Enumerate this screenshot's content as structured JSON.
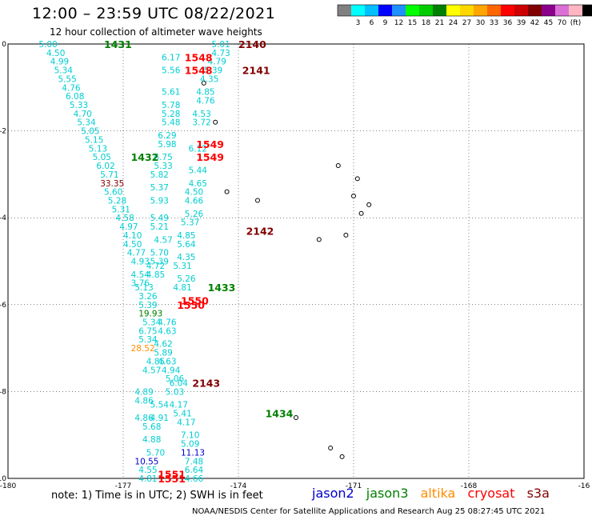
{
  "header": {
    "title": "12:00 – 23:59 UTC 08/22/2021",
    "subtitle": "12 hour collection of altimeter wave heights"
  },
  "colorbar": {
    "colors": [
      "#808080",
      "#00ffff",
      "#00bfff",
      "#0000ff",
      "#1e90ff",
      "#00ff00",
      "#00cc00",
      "#008000",
      "#ffff00",
      "#ffd700",
      "#ffa500",
      "#ff6600",
      "#ff0000",
      "#cc0000",
      "#800000",
      "#8b008b",
      "#da70d6",
      "#ffb6c1",
      "#000000"
    ],
    "ticks": [
      "3",
      "6",
      "9",
      "12",
      "15",
      "18",
      "21",
      "24",
      "27",
      "30",
      "33",
      "36",
      "39",
      "42",
      "45",
      "70",
      "(ft)"
    ]
  },
  "axes": {
    "x_ticks": [
      "-180",
      "-177",
      "-174",
      "-171",
      "-168",
      "-16"
    ],
    "y_ticks": [
      "0",
      "-2",
      "-4",
      "-6",
      "-8",
      "-10"
    ]
  },
  "colors": {
    "jason2": "#0000cd",
    "jason3": "#008000",
    "altika": "#ff8c00",
    "cryosat": "#ff0000",
    "s3a": "#800000",
    "swh": "#00ced1"
  },
  "footer": {
    "note": "note:  1) Time is in UTC;  2) SWH is in feet",
    "credit": "NOAA/NESDIS Center for Satellite Applications and Research     Aug 25 08:27:45 UTC 2021"
  },
  "legend": {
    "jason2": "jason2",
    "jason3": "jason3",
    "altika": "altika",
    "cryosat": "cryosat",
    "s3a": "s3a"
  },
  "track_labels": [
    {
      "text": "1431",
      "lon": -177.5,
      "lat": 0.0,
      "sat": "jason3"
    },
    {
      "text": "1432",
      "lon": -176.8,
      "lat": -2.6,
      "sat": "jason3"
    },
    {
      "text": "1433",
      "lon": -174.8,
      "lat": -5.6,
      "sat": "jason3"
    },
    {
      "text": "1434",
      "lon": -173.3,
      "lat": -8.5,
      "sat": "jason3"
    },
    {
      "text": "1548",
      "lon": -175.4,
      "lat": -0.3,
      "sat": "cryosat"
    },
    {
      "text": "1548",
      "lon": -175.4,
      "lat": -0.6,
      "sat": "cryosat"
    },
    {
      "text": "1549",
      "lon": -175.1,
      "lat": -2.3,
      "sat": "cryosat"
    },
    {
      "text": "1549",
      "lon": -175.1,
      "lat": -2.6,
      "sat": "cryosat"
    },
    {
      "text": "1550",
      "lon": -175.5,
      "lat": -5.9,
      "sat": "cryosat"
    },
    {
      "text": "1550",
      "lon": -175.6,
      "lat": -6.0,
      "sat": "cryosat"
    },
    {
      "text": "1551",
      "lon": -176.1,
      "lat": -9.9,
      "sat": "cryosat"
    },
    {
      "text": "1551",
      "lon": -176.1,
      "lat": -10.0,
      "sat": "cryosat"
    },
    {
      "text": "2140",
      "lon": -174.0,
      "lat": 0.0,
      "sat": "s3a"
    },
    {
      "text": "2141",
      "lon": -173.9,
      "lat": -0.6,
      "sat": "s3a"
    },
    {
      "text": "2142",
      "lon": -173.8,
      "lat": -4.3,
      "sat": "s3a"
    },
    {
      "text": "2143",
      "lon": -175.2,
      "lat": -7.8,
      "sat": "s3a"
    }
  ],
  "swh_values": [
    {
      "v": "5.00",
      "lon": -179.2,
      "lat": 0.0,
      "c": "swh"
    },
    {
      "v": "4.50",
      "lon": -179.0,
      "lat": -0.2,
      "c": "swh"
    },
    {
      "v": "4.99",
      "lon": -178.9,
      "lat": -0.4,
      "c": "swh"
    },
    {
      "v": "5.34",
      "lon": -178.8,
      "lat": -0.6,
      "c": "swh"
    },
    {
      "v": "5.55",
      "lon": -178.7,
      "lat": -0.8,
      "c": "swh"
    },
    {
      "v": "4.76",
      "lon": -178.6,
      "lat": -1.0,
      "c": "swh"
    },
    {
      "v": "6.08",
      "lon": -178.5,
      "lat": -1.2,
      "c": "swh"
    },
    {
      "v": "5.33",
      "lon": -178.4,
      "lat": -1.4,
      "c": "swh"
    },
    {
      "v": "4.70",
      "lon": -178.3,
      "lat": -1.6,
      "c": "swh"
    },
    {
      "v": "5.34",
      "lon": -178.2,
      "lat": -1.8,
      "c": "swh"
    },
    {
      "v": "5.05",
      "lon": -178.1,
      "lat": -2.0,
      "c": "swh"
    },
    {
      "v": "5.15",
      "lon": -178.0,
      "lat": -2.2,
      "c": "swh"
    },
    {
      "v": "5.13",
      "lon": -177.9,
      "lat": -2.4,
      "c": "swh"
    },
    {
      "v": "5.05",
      "lon": -177.8,
      "lat": -2.6,
      "c": "swh"
    },
    {
      "v": "6.02",
      "lon": -177.7,
      "lat": -2.8,
      "c": "swh"
    },
    {
      "v": "5.71",
      "lon": -177.6,
      "lat": -3.0,
      "c": "swh"
    },
    {
      "v": "33.35",
      "lon": -177.6,
      "lat": -3.2,
      "c": "s3a"
    },
    {
      "v": "5.60",
      "lon": -177.5,
      "lat": -3.4,
      "c": "swh"
    },
    {
      "v": "5.28",
      "lon": -177.4,
      "lat": -3.6,
      "c": "swh"
    },
    {
      "v": "5.31",
      "lon": -177.3,
      "lat": -3.8,
      "c": "swh"
    },
    {
      "v": "4.58",
      "lon": -177.2,
      "lat": -4.0,
      "c": "swh"
    },
    {
      "v": "4.97",
      "lon": -177.1,
      "lat": -4.2,
      "c": "swh"
    },
    {
      "v": "4.10",
      "lon": -177.0,
      "lat": -4.4,
      "c": "swh"
    },
    {
      "v": "4.50",
      "lon": -177.0,
      "lat": -4.6,
      "c": "swh"
    },
    {
      "v": "4.77",
      "lon": -176.9,
      "lat": -4.8,
      "c": "swh"
    },
    {
      "v": "4.93",
      "lon": -176.8,
      "lat": -5.0,
      "c": "swh"
    },
    {
      "v": "4.54",
      "lon": -176.8,
      "lat": -5.3,
      "c": "swh"
    },
    {
      "v": "3.76",
      "lon": -176.8,
      "lat": -5.5,
      "c": "swh"
    },
    {
      "v": "5.13",
      "lon": -176.7,
      "lat": -5.6,
      "c": "swh"
    },
    {
      "v": "3.26",
      "lon": -176.6,
      "lat": -5.8,
      "c": "swh"
    },
    {
      "v": "5.39",
      "lon": -176.6,
      "lat": -6.0,
      "c": "swh"
    },
    {
      "v": "19.93",
      "lon": -176.6,
      "lat": -6.2,
      "c": "jason3"
    },
    {
      "v": "5.34",
      "lon": -176.5,
      "lat": -6.4,
      "c": "swh"
    },
    {
      "v": "6.75",
      "lon": -176.6,
      "lat": -6.6,
      "c": "swh"
    },
    {
      "v": "5.34",
      "lon": -176.6,
      "lat": -6.8,
      "c": "swh"
    },
    {
      "v": "28.52",
      "lon": -176.8,
      "lat": -7.0,
      "c": "altika"
    },
    {
      "v": "4.85",
      "lon": -176.4,
      "lat": -7.3,
      "c": "swh"
    },
    {
      "v": "4.57",
      "lon": -176.5,
      "lat": -7.5,
      "c": "swh"
    },
    {
      "v": "6.04",
      "lon": -175.8,
      "lat": -7.8,
      "c": "swh"
    },
    {
      "v": "4.89",
      "lon": -176.7,
      "lat": -8.0,
      "c": "swh"
    },
    {
      "v": "4.86",
      "lon": -176.7,
      "lat": -8.2,
      "c": "swh"
    },
    {
      "v": "5.54",
      "lon": -176.3,
      "lat": -8.3,
      "c": "swh"
    },
    {
      "v": "4.91",
      "lon": -176.3,
      "lat": -8.6,
      "c": "swh"
    },
    {
      "v": "4.86",
      "lon": -176.7,
      "lat": -8.6,
      "c": "swh"
    },
    {
      "v": "5.68",
      "lon": -176.5,
      "lat": -8.8,
      "c": "swh"
    },
    {
      "v": "4.88",
      "lon": -176.5,
      "lat": -9.1,
      "c": "swh"
    },
    {
      "v": "5.70",
      "lon": -176.4,
      "lat": -9.4,
      "c": "swh"
    },
    {
      "v": "10.55",
      "lon": -176.7,
      "lat": -9.6,
      "c": "jason2"
    },
    {
      "v": "4.55",
      "lon": -176.6,
      "lat": -9.8,
      "c": "swh"
    },
    {
      "v": "4.81",
      "lon": -176.6,
      "lat": -10.0,
      "c": "swh"
    },
    {
      "v": "6.17",
      "lon": -176.0,
      "lat": -0.3,
      "c": "swh"
    },
    {
      "v": "5.56",
      "lon": -176.0,
      "lat": -0.6,
      "c": "swh"
    },
    {
      "v": "5.61",
      "lon": -176.0,
      "lat": -1.1,
      "c": "swh"
    },
    {
      "v": "5.78",
      "lon": -176.0,
      "lat": -1.4,
      "c": "swh"
    },
    {
      "v": "5.28",
      "lon": -176.0,
      "lat": -1.6,
      "c": "swh"
    },
    {
      "v": "5.48",
      "lon": -176.0,
      "lat": -1.8,
      "c": "swh"
    },
    {
      "v": "6.29",
      "lon": -176.1,
      "lat": -2.1,
      "c": "swh"
    },
    {
      "v": "5.98",
      "lon": -176.1,
      "lat": -2.3,
      "c": "swh"
    },
    {
      "v": "6.75",
      "lon": -176.2,
      "lat": -2.6,
      "c": "swh"
    },
    {
      "v": "5.33",
      "lon": -176.2,
      "lat": -2.8,
      "c": "swh"
    },
    {
      "v": "5.82",
      "lon": -176.3,
      "lat": -3.0,
      "c": "swh"
    },
    {
      "v": "5.37",
      "lon": -176.3,
      "lat": -3.3,
      "c": "swh"
    },
    {
      "v": "5.93",
      "lon": -176.3,
      "lat": -3.6,
      "c": "swh"
    },
    {
      "v": "5.49",
      "lon": -176.3,
      "lat": -4.0,
      "c": "swh"
    },
    {
      "v": "5.21",
      "lon": -176.3,
      "lat": -4.2,
      "c": "swh"
    },
    {
      "v": "4.57",
      "lon": -176.2,
      "lat": -4.5,
      "c": "swh"
    },
    {
      "v": "5.70",
      "lon": -176.3,
      "lat": -4.8,
      "c": "swh"
    },
    {
      "v": "5.39",
      "lon": -176.3,
      "lat": -5.0,
      "c": "swh"
    },
    {
      "v": "4.72",
      "lon": -176.4,
      "lat": -5.1,
      "c": "swh"
    },
    {
      "v": "4.85",
      "lon": -176.4,
      "lat": -5.3,
      "c": "swh"
    },
    {
      "v": "5.01",
      "lon": -174.7,
      "lat": 0.0,
      "c": "swh"
    },
    {
      "v": "4.73",
      "lon": -174.7,
      "lat": -0.2,
      "c": "swh"
    },
    {
      "v": "4.79",
      "lon": -174.8,
      "lat": -0.4,
      "c": "swh"
    },
    {
      "v": "5.39",
      "lon": -174.9,
      "lat": -0.6,
      "c": "swh"
    },
    {
      "v": "4.35",
      "lon": -175.0,
      "lat": -0.8,
      "c": "swh"
    },
    {
      "v": "4.85",
      "lon": -175.1,
      "lat": -1.1,
      "c": "swh"
    },
    {
      "v": "4.76",
      "lon": -175.1,
      "lat": -1.3,
      "c": "swh"
    },
    {
      "v": "4.53",
      "lon": -175.2,
      "lat": -1.6,
      "c": "swh"
    },
    {
      "v": "3.72",
      "lon": -175.2,
      "lat": -1.8,
      "c": "swh"
    },
    {
      "v": "6.12",
      "lon": -175.3,
      "lat": -2.4,
      "c": "swh"
    },
    {
      "v": "5.44",
      "lon": -175.3,
      "lat": -2.9,
      "c": "swh"
    },
    {
      "v": "4.65",
      "lon": -175.3,
      "lat": -3.2,
      "c": "swh"
    },
    {
      "v": "4.50",
      "lon": -175.4,
      "lat": -3.4,
      "c": "swh"
    },
    {
      "v": "4.66",
      "lon": -175.4,
      "lat": -3.6,
      "c": "swh"
    },
    {
      "v": "5.26",
      "lon": -175.4,
      "lat": -3.9,
      "c": "swh"
    },
    {
      "v": "5.37",
      "lon": -175.5,
      "lat": -4.1,
      "c": "swh"
    },
    {
      "v": "4.85",
      "lon": -175.6,
      "lat": -4.4,
      "c": "swh"
    },
    {
      "v": "5.64",
      "lon": -175.6,
      "lat": -4.6,
      "c": "swh"
    },
    {
      "v": "4.35",
      "lon": -175.6,
      "lat": -4.9,
      "c": "swh"
    },
    {
      "v": "5.31",
      "lon": -175.7,
      "lat": -5.1,
      "c": "swh"
    },
    {
      "v": "5.26",
      "lon": -175.6,
      "lat": -5.4,
      "c": "swh"
    },
    {
      "v": "4.81",
      "lon": -175.7,
      "lat": -5.6,
      "c": "swh"
    },
    {
      "v": "4.76",
      "lon": -176.1,
      "lat": -6.4,
      "c": "swh"
    },
    {
      "v": "4.63",
      "lon": -176.1,
      "lat": -6.6,
      "c": "swh"
    },
    {
      "v": "4.62",
      "lon": -176.2,
      "lat": -6.9,
      "c": "swh"
    },
    {
      "v": "5.89",
      "lon": -176.2,
      "lat": -7.1,
      "c": "swh"
    },
    {
      "v": "4.63",
      "lon": -176.1,
      "lat": -7.3,
      "c": "swh"
    },
    {
      "v": "4.94",
      "lon": -176.0,
      "lat": -7.5,
      "c": "swh"
    },
    {
      "v": "5.06",
      "lon": -175.9,
      "lat": -7.7,
      "c": "swh"
    },
    {
      "v": "5.03",
      "lon": -175.9,
      "lat": -8.0,
      "c": "swh"
    },
    {
      "v": "4.17",
      "lon": -175.8,
      "lat": -8.3,
      "c": "swh"
    },
    {
      "v": "5.41",
      "lon": -175.7,
      "lat": -8.5,
      "c": "swh"
    },
    {
      "v": "4.17",
      "lon": -175.6,
      "lat": -8.7,
      "c": "swh"
    },
    {
      "v": "7.10",
      "lon": -175.5,
      "lat": -9.0,
      "c": "swh"
    },
    {
      "v": "5.09",
      "lon": -175.5,
      "lat": -9.2,
      "c": "swh"
    },
    {
      "v": "11.13",
      "lon": -175.5,
      "lat": -9.4,
      "c": "jason2"
    },
    {
      "v": "7.48",
      "lon": -175.4,
      "lat": -9.6,
      "c": "swh"
    },
    {
      "v": "6.64",
      "lon": -175.4,
      "lat": -9.8,
      "c": "swh"
    },
    {
      "v": "4.66",
      "lon": -175.4,
      "lat": -10.0,
      "c": "swh"
    }
  ],
  "islands": [
    {
      "lon": -174.3,
      "lat": -3.4
    },
    {
      "lon": -173.5,
      "lat": -3.6
    },
    {
      "lon": -171.4,
      "lat": -2.8
    },
    {
      "lon": -170.9,
      "lat": -3.1
    },
    {
      "lon": -171.0,
      "lat": -3.5
    },
    {
      "lon": -170.6,
      "lat": -3.7
    },
    {
      "lon": -170.8,
      "lat": -3.9
    },
    {
      "lon": -171.9,
      "lat": -4.5
    },
    {
      "lon": -171.2,
      "lat": -4.4
    },
    {
      "lon": -172.5,
      "lat": -8.6
    },
    {
      "lon": -171.6,
      "lat": -9.3
    },
    {
      "lon": -171.3,
      "lat": -9.5
    },
    {
      "lon": -174.9,
      "lat": -0.9
    },
    {
      "lon": -174.6,
      "lat": -1.8
    }
  ]
}
